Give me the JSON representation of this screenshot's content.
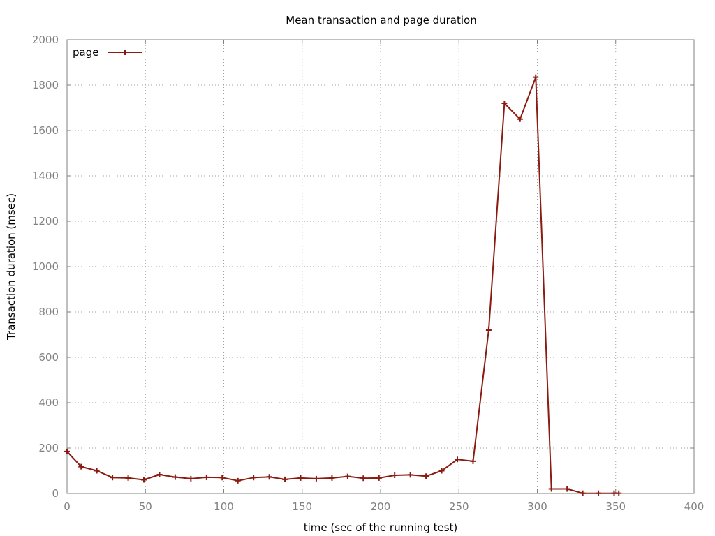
{
  "chart_data": {
    "type": "line",
    "title": "Mean transaction and page duration",
    "xlabel": "time (sec of the running test)",
    "ylabel": "Transaction duration (msec)",
    "xlim": [
      0,
      400
    ],
    "ylim": [
      0,
      2000
    ],
    "xticks": [
      "0",
      "50",
      "100",
      "150",
      "200",
      "250",
      "300",
      "350",
      "400"
    ],
    "yticks": [
      "0",
      "200",
      "400",
      "600",
      "800",
      "1000",
      "1200",
      "1400",
      "1600",
      "1800",
      "2000"
    ],
    "grid": true,
    "legend_position": "top-left",
    "series": [
      {
        "name": "page",
        "color": "#8b1a10",
        "marker": "plus",
        "x": [
          0,
          9,
          19,
          29,
          39,
          49,
          59,
          69,
          79,
          89,
          99,
          109,
          119,
          129,
          139,
          149,
          159,
          169,
          179,
          189,
          199,
          209,
          219,
          229,
          239,
          249,
          259,
          269,
          279,
          289,
          299,
          309,
          319,
          329,
          339,
          349,
          352
        ],
        "y": [
          185,
          118,
          100,
          70,
          68,
          60,
          83,
          72,
          65,
          71,
          70,
          56,
          70,
          73,
          62,
          68,
          65,
          68,
          75,
          67,
          68,
          80,
          82,
          76,
          100,
          150,
          142,
          720,
          1720,
          1650,
          1835,
          20,
          20,
          1,
          1,
          1,
          1
        ]
      }
    ]
  }
}
